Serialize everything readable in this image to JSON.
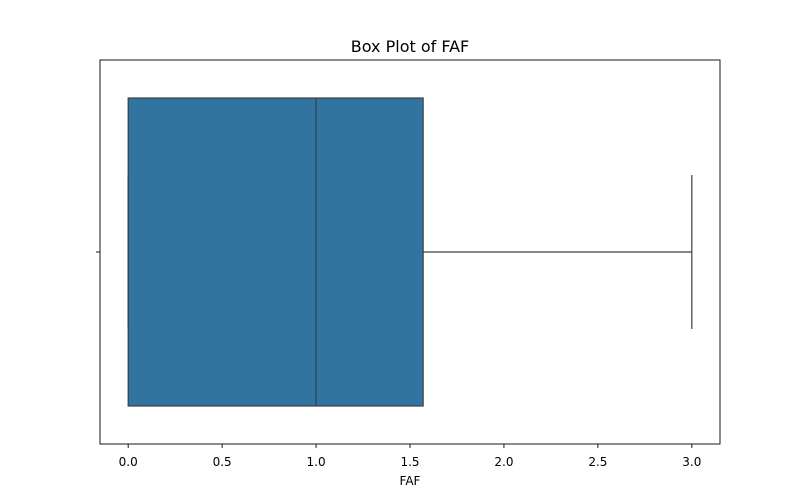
{
  "chart_data": {
    "type": "box",
    "title": "Box Plot of FAF",
    "xlabel": "FAF",
    "ylabel": "",
    "orientation": "horizontal",
    "xlim": [
      -0.15,
      3.15
    ],
    "xticks": [
      0.0,
      0.5,
      1.0,
      1.5,
      2.0,
      2.5,
      3.0
    ],
    "xtick_labels": [
      "0.0",
      "0.5",
      "1.0",
      "1.5",
      "2.0",
      "2.5",
      "3.0"
    ],
    "grid": false,
    "legend": "none",
    "box": {
      "whisker_low": 0.0,
      "q1": 0.0,
      "median": 1.0,
      "q3": 1.57,
      "whisker_high": 3.0
    },
    "colors": {
      "box_fill": "#3274a1",
      "line": "#3f3f3f",
      "axis": "#000000"
    }
  }
}
